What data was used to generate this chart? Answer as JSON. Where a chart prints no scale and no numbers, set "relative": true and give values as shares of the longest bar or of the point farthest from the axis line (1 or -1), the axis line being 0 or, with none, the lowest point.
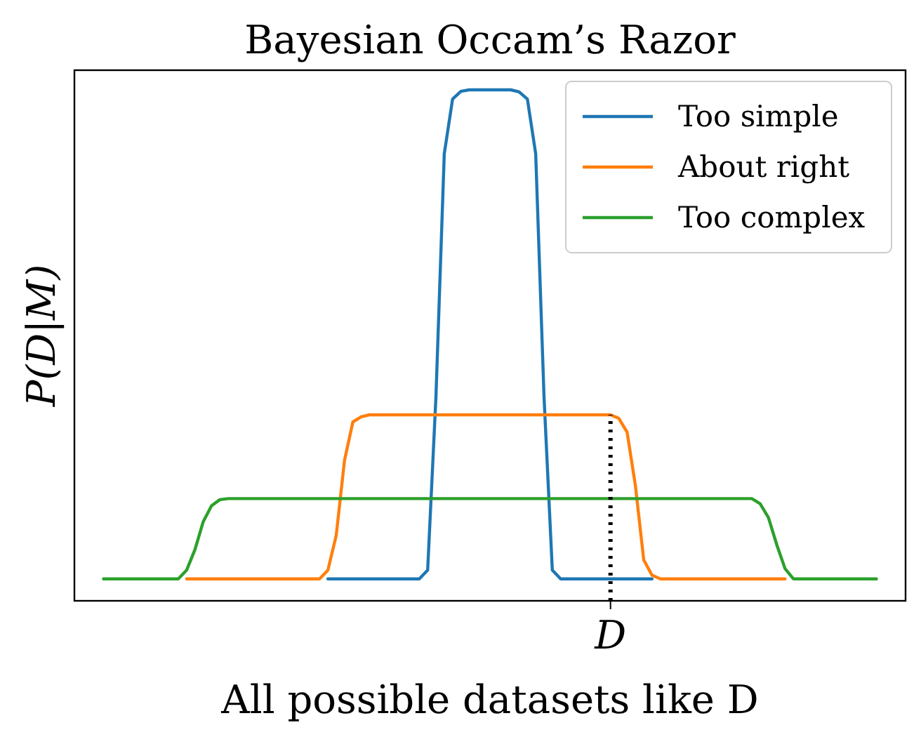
{
  "chart_data": {
    "type": "line",
    "title": "Bayesian Occam’s Razor",
    "xlabel": "All possible datasets like D",
    "ylabel": "P(D|M)",
    "relative": true,
    "legend": "top right",
    "grid": false,
    "marker": "none",
    "categories": [
      null,
      null,
      null,
      null,
      null,
      null,
      null,
      null,
      null,
      null,
      null,
      null,
      null,
      null,
      null,
      null,
      null,
      null,
      null,
      null,
      null,
      null,
      null,
      null,
      null,
      null,
      null,
      null,
      null,
      null,
      null,
      null,
      null,
      null,
      null,
      null,
      null,
      null,
      null,
      null,
      null,
      null,
      null,
      null,
      null,
      null,
      null,
      null,
      null,
      null,
      null,
      null,
      null,
      null,
      null,
      null,
      null,
      null,
      null,
      null,
      null,
      null,
      null,
      null,
      null,
      null,
      null,
      null,
      null,
      null,
      null,
      null,
      null,
      null,
      null,
      null,
      null,
      null,
      null,
      null,
      null,
      null,
      null,
      null,
      null,
      null,
      null,
      null,
      null,
      null,
      null,
      null,
      null,
      null
    ],
    "annotations": [
      "D"
    ],
    "series": [
      {
        "name": "Too simple",
        "color": "#1f77b4",
        "values": [
          null,
          null,
          null,
          null,
          null,
          null,
          null,
          null,
          null,
          null,
          null,
          null,
          null,
          null,
          null,
          null,
          null,
          null,
          null,
          null,
          null,
          null,
          null,
          null,
          null,
          null,
          null,
          0.043,
          0.043,
          0.043,
          0.043,
          0.043,
          0.043,
          0.043,
          0.043,
          0.043,
          0.043,
          0.043,
          0.043,
          0.06,
          0.4,
          0.875,
          0.982,
          0.997,
          1,
          1,
          1,
          1,
          1,
          1,
          0.996,
          0.982,
          0.875,
          0.4,
          0.06,
          0.043,
          0.043,
          0.043,
          0.043,
          0.043,
          0.043,
          0.043,
          0.043,
          0.043,
          0.043,
          0.043,
          0.043,
          null,
          null,
          null,
          null,
          null,
          null,
          null,
          null,
          null,
          null,
          null,
          null,
          null,
          null,
          null,
          null,
          null,
          null,
          null,
          null,
          null,
          null,
          null,
          null,
          null,
          null,
          null
        ]
      },
      {
        "name": "About right",
        "color": "#ff7f0e",
        "values": [
          null,
          null,
          null,
          null,
          null,
          null,
          null,
          null,
          null,
          null,
          0.043,
          0.043,
          0.043,
          0.043,
          0.043,
          0.043,
          0.043,
          0.043,
          0.043,
          0.043,
          0.043,
          0.043,
          0.043,
          0.043,
          0.043,
          0.043,
          0.043,
          0.06,
          0.128,
          0.275,
          0.35,
          0.36,
          0.364,
          0.364,
          0.364,
          0.364,
          0.364,
          0.364,
          0.364,
          0.364,
          0.364,
          0.364,
          0.364,
          0.364,
          0.364,
          0.364,
          0.364,
          0.364,
          0.364,
          0.364,
          0.364,
          0.364,
          0.364,
          0.364,
          0.364,
          0.364,
          0.364,
          0.364,
          0.364,
          0.364,
          0.364,
          0.364,
          0.357,
          0.33,
          0.225,
          0.08,
          0.05,
          0.043,
          0.043,
          0.043,
          0.043,
          0.043,
          0.043,
          0.043,
          0.043,
          0.043,
          0.043,
          0.043,
          0.043,
          0.043,
          0.043,
          0.043,
          0.043,
          null,
          null,
          null,
          null,
          null,
          null,
          null,
          null,
          null,
          null,
          null
        ]
      },
      {
        "name": "Too complex",
        "color": "#2ca02c",
        "values": [
          0.043,
          0.043,
          0.043,
          0.043,
          0.043,
          0.043,
          0.043,
          0.043,
          0.043,
          0.043,
          0.06,
          0.1,
          0.155,
          0.186,
          0.198,
          0.2,
          0.2,
          0.2,
          0.2,
          0.2,
          0.2,
          0.2,
          0.2,
          0.2,
          0.2,
          0.2,
          0.2,
          0.2,
          0.2,
          0.2,
          0.2,
          0.2,
          0.2,
          0.2,
          0.2,
          0.2,
          0.2,
          0.2,
          0.2,
          0.2,
          0.2,
          0.2,
          0.2,
          0.2,
          0.2,
          0.2,
          0.2,
          0.2,
          0.2,
          0.2,
          0.2,
          0.2,
          0.2,
          0.2,
          0.2,
          0.2,
          0.2,
          0.2,
          0.2,
          0.2,
          0.2,
          0.2,
          0.2,
          0.2,
          0.2,
          0.2,
          0.2,
          0.2,
          0.2,
          0.2,
          0.2,
          0.2,
          0.2,
          0.2,
          0.2,
          0.2,
          0.2,
          0.2,
          0.2,
          0.19,
          0.163,
          0.11,
          0.063,
          0.043,
          0.043,
          0.043,
          0.043,
          0.043,
          0.043,
          0.043,
          0.043,
          0.043,
          0.043,
          0.043
        ]
      }
    ]
  }
}
